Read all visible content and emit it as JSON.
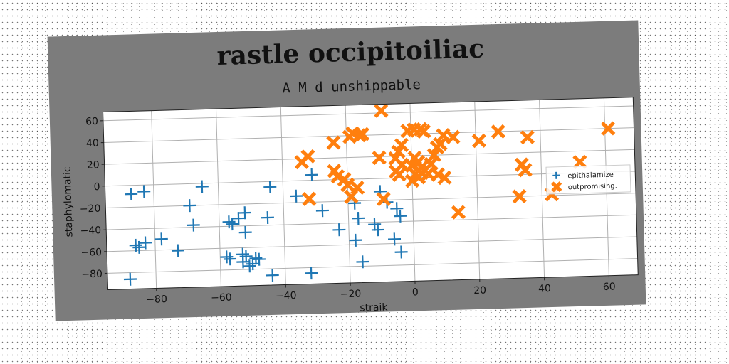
{
  "chart_data": {
    "type": "scatter",
    "title": "rastle occipitoiliac",
    "subtitle": "A M d unshippable",
    "xlabel": "straik",
    "ylabel": "staphylomatic",
    "xlim": [
      -95,
      69
    ],
    "ylim": [
      -95,
      68
    ],
    "xticks": [
      -80,
      -60,
      -40,
      -20,
      0,
      20,
      40,
      60
    ],
    "yticks": [
      -80,
      -60,
      -40,
      -20,
      0,
      20,
      40,
      60
    ],
    "grid": true,
    "legend_position": "center-right",
    "series": [
      {
        "name": "epithalamize",
        "marker": "plus",
        "color": "#1f77b4",
        "points": [
          [
            -87,
            -8
          ],
          [
            -83,
            -6
          ],
          [
            -65,
            -3
          ],
          [
            -44,
            -5
          ],
          [
            -36,
            -14
          ],
          [
            -31,
            5
          ],
          [
            -69,
            -20
          ],
          [
            -68,
            -38
          ],
          [
            -78,
            -50
          ],
          [
            -83,
            -53
          ],
          [
            -86,
            -55
          ],
          [
            -85,
            -57
          ],
          [
            -73,
            -61
          ],
          [
            -57,
            -36
          ],
          [
            -56,
            -38
          ],
          [
            -52,
            -28
          ],
          [
            -54,
            -33
          ],
          [
            -52,
            -46
          ],
          [
            -45,
            -33
          ],
          [
            -58,
            -68
          ],
          [
            -57,
            -70
          ],
          [
            -53,
            -66
          ],
          [
            -52,
            -68
          ],
          [
            -53,
            -73
          ],
          [
            -51,
            -77
          ],
          [
            -50,
            -75
          ],
          [
            -49,
            -70
          ],
          [
            -48,
            -71
          ],
          [
            -44,
            -86
          ],
          [
            -88,
            -86
          ],
          [
            -32,
            -85
          ],
          [
            -28,
            -28
          ],
          [
            -23,
            -46
          ],
          [
            -18,
            -22
          ],
          [
            -17,
            -36
          ],
          [
            -18,
            -56
          ],
          [
            -16,
            -76
          ],
          [
            -12,
            -42
          ],
          [
            -11,
            -47
          ],
          [
            -10,
            -12
          ],
          [
            -8,
            -22
          ],
          [
            -6,
            -56
          ],
          [
            -5,
            -28
          ],
          [
            -4,
            -35
          ],
          [
            -4,
            -68
          ]
        ]
      },
      {
        "name": "outpromising.",
        "marker": "x",
        "color": "#ff7f0e",
        "points": [
          [
            -9,
            62
          ],
          [
            -19,
            39
          ],
          [
            -18,
            42
          ],
          [
            -16,
            40
          ],
          [
            -15,
            41
          ],
          [
            -24,
            34
          ],
          [
            -34,
            17
          ],
          [
            -32,
            22
          ],
          [
            -24,
            8
          ],
          [
            -23,
            3
          ],
          [
            -21,
            0
          ],
          [
            -20,
            -5
          ],
          [
            -19,
            -16
          ],
          [
            -17,
            -8
          ],
          [
            -32,
            -17
          ],
          [
            -9,
            -19
          ],
          [
            -10,
            19
          ],
          [
            -5,
            18
          ],
          [
            -4,
            24
          ],
          [
            -3,
            30
          ],
          [
            -3,
            12
          ],
          [
            -5,
            6
          ],
          [
            -4,
            3
          ],
          [
            -1,
            43
          ],
          [
            1,
            44
          ],
          [
            3,
            44
          ],
          [
            4,
            42
          ],
          [
            0,
            11
          ],
          [
            1,
            18
          ],
          [
            2,
            14
          ],
          [
            3,
            9
          ],
          [
            4,
            6
          ],
          [
            5,
            3
          ],
          [
            6,
            12
          ],
          [
            7,
            20
          ],
          [
            8,
            27
          ],
          [
            9,
            30
          ],
          [
            1,
            3
          ],
          [
            2,
            0
          ],
          [
            0,
            -3
          ],
          [
            3,
            4
          ],
          [
            8,
            2
          ],
          [
            10,
            -1
          ],
          [
            10,
            38
          ],
          [
            13,
            36
          ],
          [
            21,
            32
          ],
          [
            27,
            40
          ],
          [
            36,
            34
          ],
          [
            33,
            -20
          ],
          [
            34,
            9
          ],
          [
            35,
            4
          ],
          [
            43,
            -19
          ],
          [
            52,
            10
          ],
          [
            61,
            40
          ],
          [
            14,
            -33
          ]
        ]
      }
    ]
  }
}
